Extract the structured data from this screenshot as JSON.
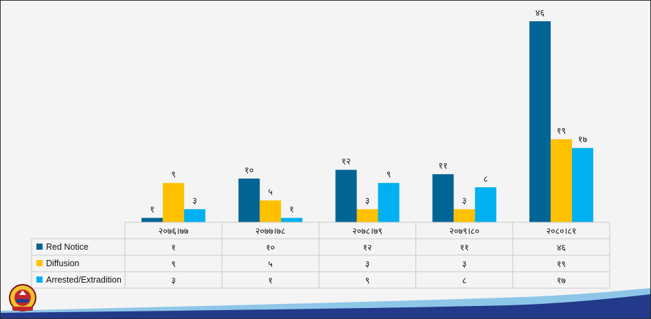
{
  "chart_data": {
    "type": "bar",
    "categories": [
      "२०७६।७७",
      "२०७७।७८",
      "२०७८।७९",
      "२०७९।८०",
      "२०८०।८१"
    ],
    "series": [
      {
        "name": "Red Notice",
        "values": [
          1,
          10,
          12,
          11,
          46
        ],
        "labels": [
          "१",
          "१०",
          "१२",
          "११",
          "४६"
        ],
        "color": "#006494"
      },
      {
        "name": "Diffusion",
        "values": [
          9,
          5,
          3,
          3,
          19
        ],
        "labels": [
          "९",
          "५",
          "३",
          "३",
          "१९"
        ],
        "color": "#FFC000"
      },
      {
        "name": "Arrested/Extradition",
        "values": [
          3,
          1,
          9,
          8,
          17
        ],
        "labels": [
          "३",
          "१",
          "९",
          "८",
          "१७"
        ],
        "color": "#00B0F0"
      }
    ],
    "ylim": [
      0,
      46
    ],
    "legend": "data-table"
  },
  "colors": {
    "background": "#f4f4f4",
    "grid": "#c8c8c8",
    "wave_dark": "#233a8a",
    "wave_light": "#8ec6e8"
  },
  "logo": {
    "icon": "nepal-police-emblem-icon"
  }
}
